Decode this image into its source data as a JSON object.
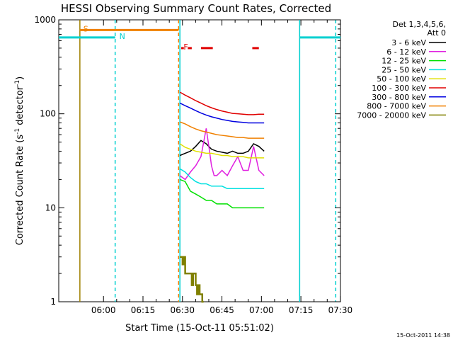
{
  "chart_data": {
    "type": "line",
    "title": "HESSI Observing Summary Count Rates, Corrected",
    "xlabel": "Start Time (15-Oct-11 05:51:02)",
    "ylabel_main": "Corrected Count Rate (s",
    "ylabel_sup1": "-1",
    "ylabel_mid": " detector",
    "ylabel_sup2": "-1",
    "ylabel_end": ")",
    "y_scale": "log",
    "ylim": [
      1,
      1000
    ],
    "xlim_minutes": [
      -8.03,
      99.0
    ],
    "x_origin": "05:51:02",
    "x_ticks": [
      {
        "label": "06:00",
        "minutes": 8.97
      },
      {
        "label": "06:15",
        "minutes": 23.97
      },
      {
        "label": "06:30",
        "minutes": 38.97
      },
      {
        "label": "06:45",
        "minutes": 53.97
      },
      {
        "label": "07:00",
        "minutes": 68.97
      },
      {
        "label": "07:15",
        "minutes": 83.97
      },
      {
        "label": "07:30",
        "minutes": 98.97
      }
    ],
    "y_ticks": [
      {
        "label": "1",
        "value": 1
      },
      {
        "label": "10",
        "value": 10
      },
      {
        "label": "100",
        "value": 100
      },
      {
        "label": "1000",
        "value": 1000
      }
    ],
    "legend": {
      "header1": "Det 1,3,4,5,6,",
      "header2": "Att 0",
      "placement": "right"
    },
    "series": [
      {
        "name": "3 - 6 keV",
        "color": "#000000",
        "x": [
          38,
          40,
          42,
          44,
          46,
          48,
          50,
          52,
          54,
          56,
          58,
          60,
          62,
          64,
          66,
          68,
          70
        ],
        "y": [
          36,
          38,
          40,
          45,
          52,
          48,
          42,
          40,
          39,
          38,
          40,
          38,
          38,
          40,
          48,
          45,
          40
        ]
      },
      {
        "name": "6 - 12 keV",
        "color": "#e020e0",
        "x": [
          38,
          40,
          42,
          44,
          46,
          48,
          49,
          50,
          51,
          52,
          54,
          56,
          58,
          60,
          62,
          64,
          66,
          68,
          70
        ],
        "y": [
          22,
          20,
          24,
          28,
          35,
          70,
          45,
          28,
          22,
          22,
          25,
          22,
          28,
          35,
          25,
          25,
          45,
          25,
          22
        ]
      },
      {
        "name": "12 - 25 keV",
        "color": "#00e000",
        "x": [
          38,
          40,
          42,
          44,
          46,
          48,
          50,
          52,
          54,
          56,
          58,
          60,
          62,
          64,
          66,
          68,
          70
        ],
        "y": [
          20,
          19,
          15,
          14,
          13,
          12,
          12,
          11,
          11,
          11,
          10,
          10,
          10,
          10,
          10,
          10,
          10
        ]
      },
      {
        "name": "25 - 50 keV",
        "color": "#00e0e0",
        "x": [
          38,
          40,
          42,
          44,
          46,
          48,
          50,
          52,
          54,
          56,
          58,
          60,
          62,
          64,
          66,
          68,
          70
        ],
        "y": [
          26,
          24,
          21,
          19,
          18,
          18,
          17,
          17,
          17,
          16,
          16,
          16,
          16,
          16,
          16,
          16,
          16
        ]
      },
      {
        "name": "50 - 100 keV",
        "color": "#e0e000",
        "x": [
          38,
          40,
          42,
          44,
          46,
          48,
          50,
          52,
          54,
          56,
          58,
          60,
          62,
          64,
          66,
          68,
          70
        ],
        "y": [
          48,
          44,
          42,
          40,
          39,
          38,
          38,
          37,
          36,
          36,
          35,
          35,
          35,
          34,
          34,
          34,
          34
        ]
      },
      {
        "name": "100 - 300 keV",
        "color": "#e00000",
        "x": [
          38,
          40,
          42,
          44,
          46,
          48,
          50,
          52,
          54,
          56,
          58,
          60,
          62,
          64,
          66,
          68,
          70
        ],
        "y": [
          170,
          158,
          148,
          138,
          130,
          122,
          116,
          111,
          107,
          104,
          101,
          100,
          99,
          98,
          98,
          99,
          99
        ]
      },
      {
        "name": "300 - 800 keV",
        "color": "#0000e0",
        "x": [
          38,
          40,
          42,
          44,
          46,
          48,
          50,
          52,
          54,
          56,
          58,
          60,
          62,
          64,
          66,
          68,
          70
        ],
        "y": [
          130,
          122,
          115,
          108,
          102,
          97,
          93,
          90,
          87,
          85,
          83,
          82,
          81,
          80,
          80,
          80,
          80
        ]
      },
      {
        "name": "800 - 7000 keV",
        "color": "#f08000",
        "x": [
          38,
          40,
          42,
          44,
          46,
          48,
          50,
          52,
          54,
          56,
          58,
          60,
          62,
          64,
          66,
          68,
          70
        ],
        "y": [
          82,
          78,
          73,
          69,
          66,
          64,
          62,
          60,
          59,
          58,
          57,
          56,
          56,
          55,
          55,
          55,
          55
        ]
      },
      {
        "name": "7000 - 20000 keV",
        "color": "#808000",
        "x": [
          38,
          38.5,
          39,
          39.5,
          40,
          40.5,
          41,
          41.5,
          42,
          42.5,
          43,
          43.5,
          44,
          44.5,
          45,
          45.5,
          46,
          46.5
        ],
        "y": [
          3,
          3,
          2.5,
          3,
          2,
          2,
          2,
          2,
          2,
          1.5,
          2,
          2,
          1.5,
          1.2,
          1.5,
          1.2,
          1.2,
          1
        ]
      }
    ],
    "markers": [
      {
        "label": "S",
        "color": "#f08000",
        "x_start": 0.0,
        "x_end": 37.5,
        "y": 780,
        "label_at": 0.5
      },
      {
        "label": "N",
        "color": "#00d0d0",
        "x_start": -8.03,
        "x_end": 13.4,
        "y": 650,
        "label_at": 14.2
      },
      {
        "label": "F",
        "color": "#e00000",
        "x_start": 38.5,
        "x_end": 39.5,
        "y": 500,
        "label_at": 38.6
      },
      {
        "label": "",
        "color": "#e00000",
        "x_start": 41.0,
        "x_end": 42.5,
        "y": 500
      },
      {
        "label": "",
        "color": "#e00000",
        "x_start": 46.0,
        "x_end": 50.5,
        "y": 500
      },
      {
        "label": "",
        "color": "#e00000",
        "x_start": 65.5,
        "x_end": 68.0,
        "y": 500
      },
      {
        "label": "",
        "color": "#00d0d0",
        "x_start": 83.5,
        "x_end": 99.0,
        "y": 650
      }
    ],
    "vlines": [
      {
        "color": "#a08000",
        "x": 0.0,
        "dash": false
      },
      {
        "color": "#00d0d0",
        "x": 13.4,
        "dash": true
      },
      {
        "color": "#f08000",
        "x": 37.5,
        "dash": true
      },
      {
        "color": "#00d0d0",
        "x": 38.0,
        "dash": false
      },
      {
        "color": "#00d0d0",
        "x": 83.5,
        "dash": false
      },
      {
        "color": "#00d0d0",
        "x": 97.2,
        "dash": true
      }
    ]
  },
  "stamp": "15-Oct-2011 14:38"
}
